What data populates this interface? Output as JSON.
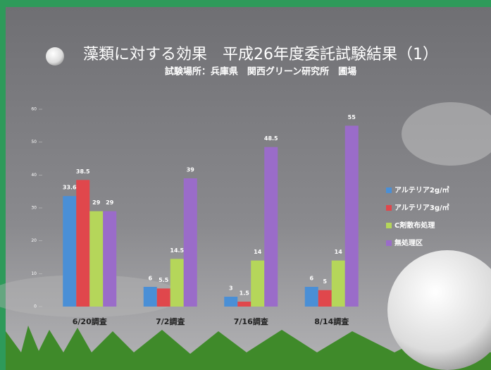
{
  "chart_data": {
    "type": "bar",
    "title": "藻類に対する効果　平成26年度委託試験結果（1）",
    "subtitle": "試験場所：兵庫県　関西グリーン研究所　圃場",
    "categories": [
      "6/20調査",
      "7/2調査",
      "7/16調査",
      "8/14調査"
    ],
    "series": [
      {
        "name": "アルテリア2g/㎡",
        "color": "#4a8fd6",
        "values": [
          33.6,
          6,
          3,
          6
        ]
      },
      {
        "name": "アルテリア3g/㎡",
        "color": "#e0474c",
        "values": [
          38.5,
          5.5,
          1.5,
          5
        ]
      },
      {
        "name": "C剤散布処理",
        "color": "#b5d65a",
        "values": [
          29,
          14.5,
          14,
          14
        ]
      },
      {
        "name": "無処理区",
        "color": "#9a6cc9",
        "values": [
          29,
          39,
          48.5,
          55
        ]
      }
    ],
    "ylim": [
      0,
      60
    ],
    "yticks": [
      0,
      10,
      20,
      30,
      40,
      50,
      60
    ],
    "legend": "right"
  }
}
